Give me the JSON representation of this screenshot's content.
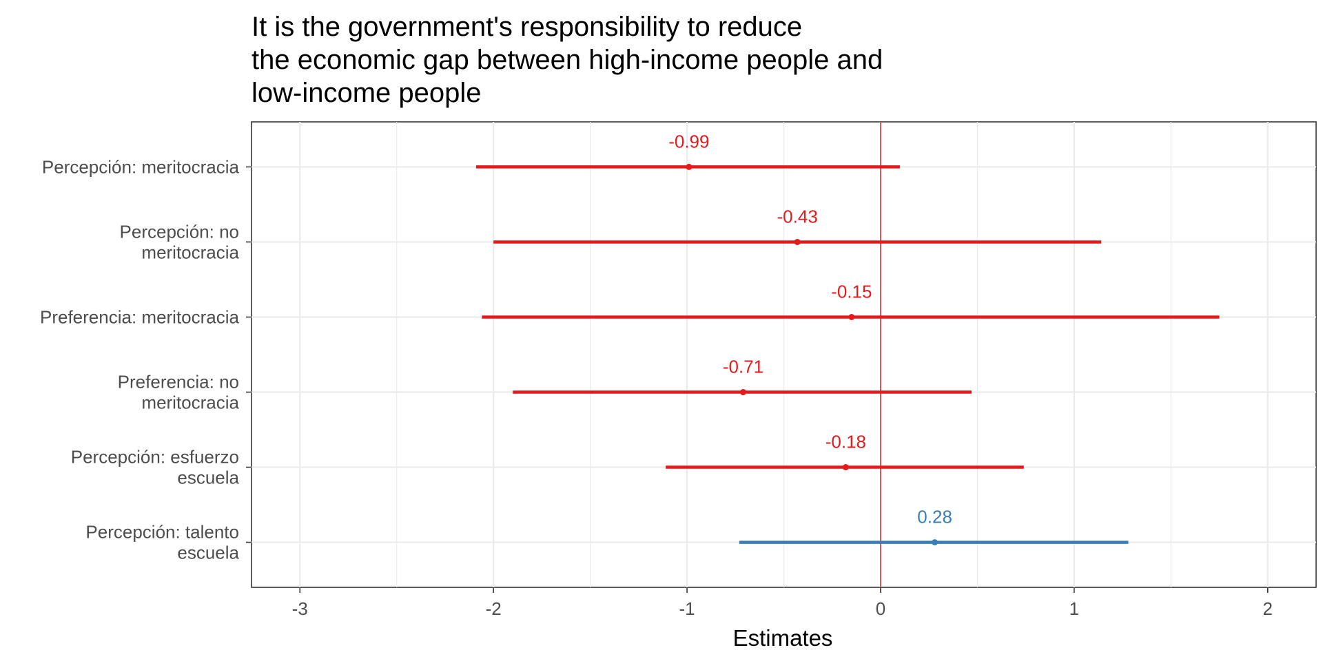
{
  "chart_data": {
    "type": "forest",
    "title_lines": [
      "It is the government's responsibility to reduce",
      "the economic gap between high-income people and",
      "low-income people"
    ],
    "xlabel": "Estimates",
    "ylabel": "",
    "xlim": [
      -3.25,
      2.25
    ],
    "x_ticks": [
      -3,
      -2,
      -1,
      0,
      1,
      2
    ],
    "x_tick_labels": [
      "-3",
      "-2",
      "-1",
      "0",
      "1",
      "2"
    ],
    "reference_line": 0,
    "reference_color": "#E41A1C",
    "grid": true,
    "colors": {
      "negative": "#E41A1C",
      "positive": "#377EB8"
    },
    "terms": [
      {
        "label_lines": [
          "Percepción: meritocracia"
        ],
        "estimate": -0.99,
        "low": -2.09,
        "high": 0.1,
        "label": "-0.99"
      },
      {
        "label_lines": [
          "Percepción: no",
          "meritocracia"
        ],
        "estimate": -0.43,
        "low": -2.0,
        "high": 1.14,
        "label": "-0.43"
      },
      {
        "label_lines": [
          "Preferencia: meritocracia"
        ],
        "estimate": -0.15,
        "low": -2.06,
        "high": 1.75,
        "label": "-0.15"
      },
      {
        "label_lines": [
          "Preferencia: no",
          "meritocracia"
        ],
        "estimate": -0.71,
        "low": -1.9,
        "high": 0.47,
        "label": "-0.71"
      },
      {
        "label_lines": [
          "Percepción: esfuerzo",
          "escuela"
        ],
        "estimate": -0.18,
        "low": -1.11,
        "high": 0.74,
        "label": "-0.18"
      },
      {
        "label_lines": [
          "Percepción: talento",
          "escuela"
        ],
        "estimate": 0.28,
        "low": -0.73,
        "high": 1.28,
        "label": "0.28"
      }
    ]
  }
}
